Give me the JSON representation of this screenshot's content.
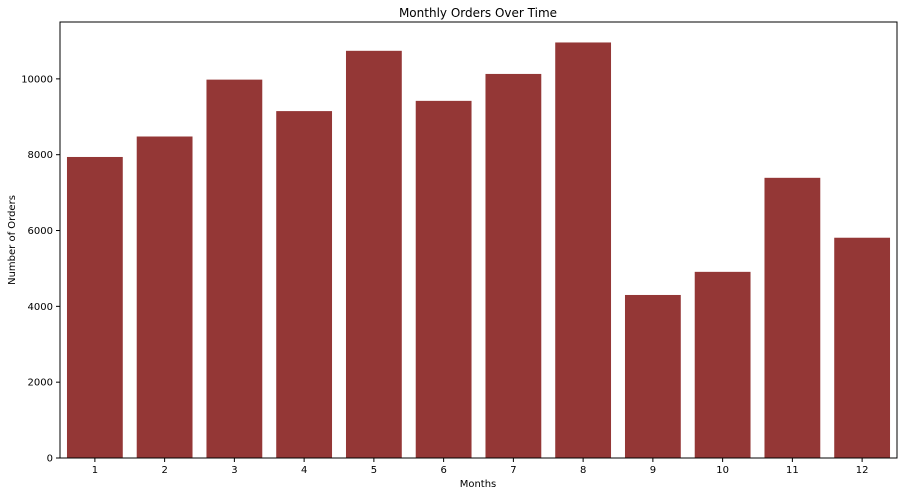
{
  "chart_data": {
    "type": "bar",
    "title": "Monthly Orders Over Time",
    "xlabel": "Months",
    "ylabel": "Number of Orders",
    "categories": [
      "1",
      "2",
      "3",
      "4",
      "5",
      "6",
      "7",
      "8",
      "9",
      "10",
      "11",
      "12"
    ],
    "values": [
      7940,
      8480,
      9980,
      9150,
      10740,
      9420,
      10130,
      10960,
      4300,
      4910,
      7390,
      5810
    ],
    "ylim": [
      0,
      11500
    ],
    "yticks": [
      0,
      2000,
      4000,
      6000,
      8000,
      10000
    ],
    "grid": false,
    "legend": "none",
    "bar_color": "#943736"
  }
}
